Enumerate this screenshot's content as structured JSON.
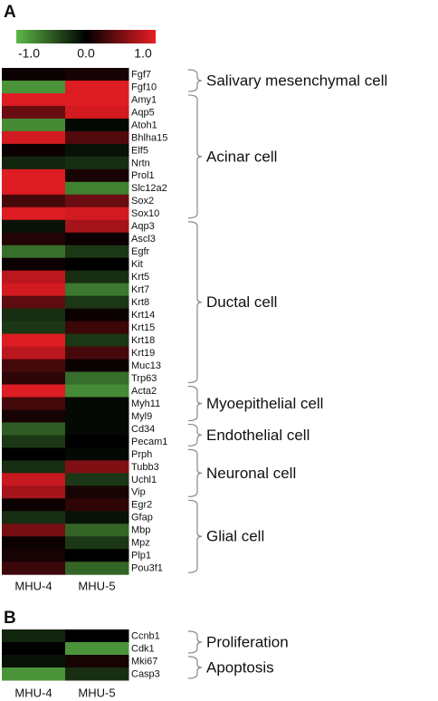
{
  "chart_data": [
    {
      "type": "heatmap",
      "panel_label": "A",
      "colors": [
        "#5cb847",
        "#000000",
        "#ea1d25"
      ],
      "vlim": [
        -1,
        1
      ],
      "colorbar": {
        "ticks": [
          {
            "value": -1,
            "label": "-1.0"
          },
          {
            "value": 0,
            "label": "0.0"
          },
          {
            "value": 1,
            "label": "1.0"
          }
        ]
      },
      "columns": [
        "MHU-4",
        "MHU-5"
      ],
      "rows": [
        "Fgf7",
        "Fgf10",
        "Amy1",
        "Aqp5",
        "Atoh1",
        "Bhlha15",
        "Elf5",
        "Nrtn",
        "Prol1",
        "Slc12a2",
        "Sox2",
        "Sox10",
        "Aqp3",
        "Ascl3",
        "Egfr",
        "Kit",
        "Krt5",
        "Krt7",
        "Krt8",
        "Krt14",
        "Krt15",
        "Krt18",
        "Krt19",
        "Muc13",
        "Trp63",
        "Acta2",
        "Myh11",
        "Myl9",
        "Cd34",
        "Pecam1",
        "Prph",
        "Tubb3",
        "Uchl1",
        "Vip",
        "Egr2",
        "Gfap",
        "Mbp",
        "Mpz",
        "Plp1",
        "Pou3f1"
      ],
      "values": [
        [
          0.05,
          0.1
        ],
        [
          -0.8,
          0.95
        ],
        [
          0.95,
          0.95
        ],
        [
          0.45,
          0.9
        ],
        [
          -0.75,
          -0.05
        ],
        [
          0.9,
          0.35
        ],
        [
          0.05,
          -0.1
        ],
        [
          -0.2,
          -0.25
        ],
        [
          0.95,
          0.1
        ],
        [
          0.95,
          -0.7
        ],
        [
          0.3,
          0.45
        ],
        [
          0.95,
          0.9
        ],
        [
          -0.1,
          0.7
        ],
        [
          0.15,
          0.05
        ],
        [
          -0.6,
          -0.3
        ],
        [
          0.05,
          0.0
        ],
        [
          0.8,
          -0.25
        ],
        [
          0.9,
          -0.65
        ],
        [
          0.4,
          -0.3
        ],
        [
          -0.25,
          0.05
        ],
        [
          -0.3,
          0.25
        ],
        [
          0.95,
          -0.3
        ],
        [
          0.8,
          0.3
        ],
        [
          0.3,
          0.05
        ],
        [
          0.2,
          -0.6
        ],
        [
          0.95,
          -0.75
        ],
        [
          0.3,
          -0.05
        ],
        [
          0.1,
          -0.05
        ],
        [
          -0.5,
          -0.05
        ],
        [
          -0.3,
          0.0
        ],
        [
          0.0,
          -0.05
        ],
        [
          -0.25,
          0.55
        ],
        [
          0.85,
          -0.3
        ],
        [
          0.7,
          0.1
        ],
        [
          0.05,
          0.2
        ],
        [
          -0.25,
          -0.1
        ],
        [
          0.5,
          -0.55
        ],
        [
          0.05,
          -0.3
        ],
        [
          0.1,
          0.0
        ],
        [
          0.25,
          -0.55
        ]
      ],
      "groups": [
        {
          "label": "Salivary mesenchymal cell",
          "span": [
            0,
            1
          ]
        },
        {
          "label": "Acinar cell",
          "span": [
            2,
            11
          ]
        },
        {
          "label": "Ductal cell",
          "span": [
            12,
            24
          ]
        },
        {
          "label": "Myoepithelial cell",
          "span": [
            25,
            27
          ]
        },
        {
          "label": "Endothelial cell",
          "span": [
            28,
            29
          ]
        },
        {
          "label": "Neuronal cell",
          "span": [
            30,
            33
          ]
        },
        {
          "label": "Glial cell",
          "span": [
            34,
            39
          ]
        }
      ]
    },
    {
      "type": "heatmap",
      "panel_label": "B",
      "colors": [
        "#5cb847",
        "#000000",
        "#ea1d25"
      ],
      "vlim": [
        -1,
        1
      ],
      "columns": [
        "MHU-4",
        "MHU-5"
      ],
      "rows": [
        "Ccnb1",
        "Cdk1",
        "Mki67",
        "Casp3"
      ],
      "values": [
        [
          -0.2,
          0.0
        ],
        [
          0.0,
          -0.8
        ],
        [
          -0.1,
          0.1
        ],
        [
          -0.8,
          -0.25
        ]
      ],
      "groups": [
        {
          "label": "Proliferation",
          "span": [
            0,
            1
          ]
        },
        {
          "label": "Apoptosis",
          "span": [
            2,
            3
          ]
        }
      ]
    }
  ]
}
